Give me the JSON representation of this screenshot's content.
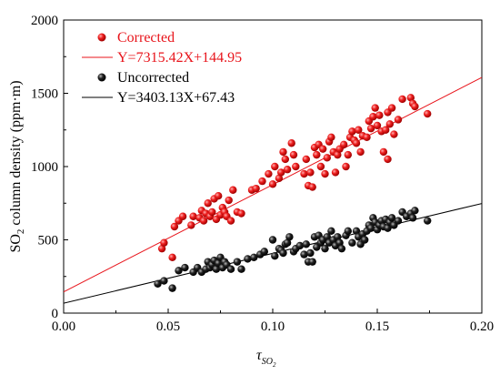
{
  "chart_data": {
    "type": "scatter",
    "xlim": [
      0.0,
      0.2
    ],
    "ylim": [
      0,
      2000
    ],
    "x_ticks": [
      "0.00",
      "0.05",
      "0.10",
      "0.15",
      "0.20"
    ],
    "y_ticks": [
      "0",
      "500",
      "1000",
      "1500",
      "2000"
    ],
    "xlabel": {
      "base": "τ",
      "sub": "SO",
      "subsub": "2"
    },
    "ylabel": {
      "pre": "SO",
      "sub": "2",
      "post": " column density (ppm·m)"
    },
    "legend_position": "top-left",
    "series": [
      {
        "name": "Corrected",
        "color": "#e8141b",
        "fit_label": "Y=7315.42X+144.95",
        "fit": {
          "slope": 7315.42,
          "intercept": 144.95
        },
        "points": [
          [
            0.047,
            440
          ],
          [
            0.048,
            480
          ],
          [
            0.052,
            380
          ],
          [
            0.053,
            590
          ],
          [
            0.055,
            630
          ],
          [
            0.057,
            660
          ],
          [
            0.061,
            600
          ],
          [
            0.062,
            660
          ],
          [
            0.065,
            650
          ],
          [
            0.066,
            700
          ],
          [
            0.067,
            630
          ],
          [
            0.068,
            680
          ],
          [
            0.069,
            750
          ],
          [
            0.07,
            660
          ],
          [
            0.071,
            690
          ],
          [
            0.072,
            780
          ],
          [
            0.073,
            640
          ],
          [
            0.074,
            800
          ],
          [
            0.075,
            670
          ],
          [
            0.076,
            720
          ],
          [
            0.077,
            690
          ],
          [
            0.078,
            660
          ],
          [
            0.079,
            770
          ],
          [
            0.08,
            630
          ],
          [
            0.081,
            840
          ],
          [
            0.083,
            690
          ],
          [
            0.085,
            680
          ],
          [
            0.09,
            840
          ],
          [
            0.092,
            850
          ],
          [
            0.095,
            900
          ],
          [
            0.098,
            950
          ],
          [
            0.1,
            880
          ],
          [
            0.101,
            1000
          ],
          [
            0.103,
            920
          ],
          [
            0.104,
            960
          ],
          [
            0.105,
            1100
          ],
          [
            0.106,
            1050
          ],
          [
            0.107,
            980
          ],
          [
            0.109,
            1160
          ],
          [
            0.11,
            1080
          ],
          [
            0.111,
            1000
          ],
          [
            0.115,
            950
          ],
          [
            0.116,
            1050
          ],
          [
            0.117,
            870
          ],
          [
            0.118,
            960
          ],
          [
            0.119,
            860
          ],
          [
            0.12,
            1130
          ],
          [
            0.121,
            1080
          ],
          [
            0.122,
            1150
          ],
          [
            0.123,
            1000
          ],
          [
            0.124,
            1120
          ],
          [
            0.125,
            950
          ],
          [
            0.126,
            1060
          ],
          [
            0.127,
            1170
          ],
          [
            0.128,
            1200
          ],
          [
            0.129,
            1100
          ],
          [
            0.13,
            960
          ],
          [
            0.131,
            1080
          ],
          [
            0.132,
            1120
          ],
          [
            0.134,
            1150
          ],
          [
            0.135,
            1000
          ],
          [
            0.136,
            1080
          ],
          [
            0.137,
            1200
          ],
          [
            0.138,
            1240
          ],
          [
            0.139,
            1180
          ],
          [
            0.14,
            1160
          ],
          [
            0.141,
            1250
          ],
          [
            0.142,
            1100
          ],
          [
            0.143,
            1210
          ],
          [
            0.145,
            1200
          ],
          [
            0.146,
            1310
          ],
          [
            0.147,
            1260
          ],
          [
            0.148,
            1340
          ],
          [
            0.149,
            1400
          ],
          [
            0.15,
            1280
          ],
          [
            0.151,
            1350
          ],
          [
            0.152,
            1240
          ],
          [
            0.153,
            1100
          ],
          [
            0.154,
            1250
          ],
          [
            0.155,
            1370
          ],
          [
            0.156,
            1290
          ],
          [
            0.157,
            1400
          ],
          [
            0.158,
            1220
          ],
          [
            0.162,
            1460
          ],
          [
            0.166,
            1470
          ],
          [
            0.167,
            1430
          ],
          [
            0.168,
            1410
          ],
          [
            0.174,
            1360
          ],
          [
            0.155,
            1050
          ],
          [
            0.16,
            1320
          ]
        ]
      },
      {
        "name": "Uncorrected",
        "color": "#000000",
        "fit_label": "Y=3403.13X+67.43",
        "fit": {
          "slope": 3403.13,
          "intercept": 67.43
        },
        "points": [
          [
            0.045,
            200
          ],
          [
            0.048,
            220
          ],
          [
            0.052,
            170
          ],
          [
            0.055,
            290
          ],
          [
            0.058,
            310
          ],
          [
            0.062,
            280
          ],
          [
            0.064,
            310
          ],
          [
            0.066,
            280
          ],
          [
            0.068,
            300
          ],
          [
            0.069,
            350
          ],
          [
            0.07,
            310
          ],
          [
            0.071,
            330
          ],
          [
            0.072,
            360
          ],
          [
            0.073,
            300
          ],
          [
            0.074,
            340
          ],
          [
            0.075,
            380
          ],
          [
            0.076,
            310
          ],
          [
            0.077,
            350
          ],
          [
            0.078,
            330
          ],
          [
            0.08,
            300
          ],
          [
            0.083,
            350
          ],
          [
            0.085,
            300
          ],
          [
            0.088,
            370
          ],
          [
            0.091,
            380
          ],
          [
            0.094,
            400
          ],
          [
            0.096,
            420
          ],
          [
            0.1,
            500
          ],
          [
            0.101,
            390
          ],
          [
            0.103,
            440
          ],
          [
            0.104,
            430
          ],
          [
            0.105,
            410
          ],
          [
            0.106,
            470
          ],
          [
            0.107,
            480
          ],
          [
            0.108,
            520
          ],
          [
            0.11,
            420
          ],
          [
            0.111,
            440
          ],
          [
            0.113,
            460
          ],
          [
            0.115,
            400
          ],
          [
            0.116,
            470
          ],
          [
            0.117,
            350
          ],
          [
            0.118,
            410
          ],
          [
            0.119,
            350
          ],
          [
            0.12,
            520
          ],
          [
            0.121,
            450
          ],
          [
            0.122,
            530
          ],
          [
            0.123,
            480
          ],
          [
            0.124,
            500
          ],
          [
            0.125,
            440
          ],
          [
            0.126,
            520
          ],
          [
            0.127,
            480
          ],
          [
            0.128,
            560
          ],
          [
            0.129,
            500
          ],
          [
            0.13,
            460
          ],
          [
            0.131,
            520
          ],
          [
            0.132,
            480
          ],
          [
            0.133,
            440
          ],
          [
            0.135,
            530
          ],
          [
            0.136,
            560
          ],
          [
            0.138,
            480
          ],
          [
            0.14,
            560
          ],
          [
            0.141,
            520
          ],
          [
            0.142,
            470
          ],
          [
            0.143,
            540
          ],
          [
            0.144,
            500
          ],
          [
            0.145,
            560
          ],
          [
            0.146,
            600
          ],
          [
            0.147,
            580
          ],
          [
            0.148,
            650
          ],
          [
            0.149,
            620
          ],
          [
            0.15,
            570
          ],
          [
            0.151,
            600
          ],
          [
            0.152,
            630
          ],
          [
            0.153,
            590
          ],
          [
            0.154,
            640
          ],
          [
            0.155,
            580
          ],
          [
            0.156,
            620
          ],
          [
            0.157,
            650
          ],
          [
            0.158,
            600
          ],
          [
            0.16,
            630
          ],
          [
            0.162,
            690
          ],
          [
            0.164,
            660
          ],
          [
            0.166,
            680
          ],
          [
            0.167,
            650
          ],
          [
            0.168,
            700
          ],
          [
            0.174,
            630
          ]
        ]
      }
    ]
  }
}
